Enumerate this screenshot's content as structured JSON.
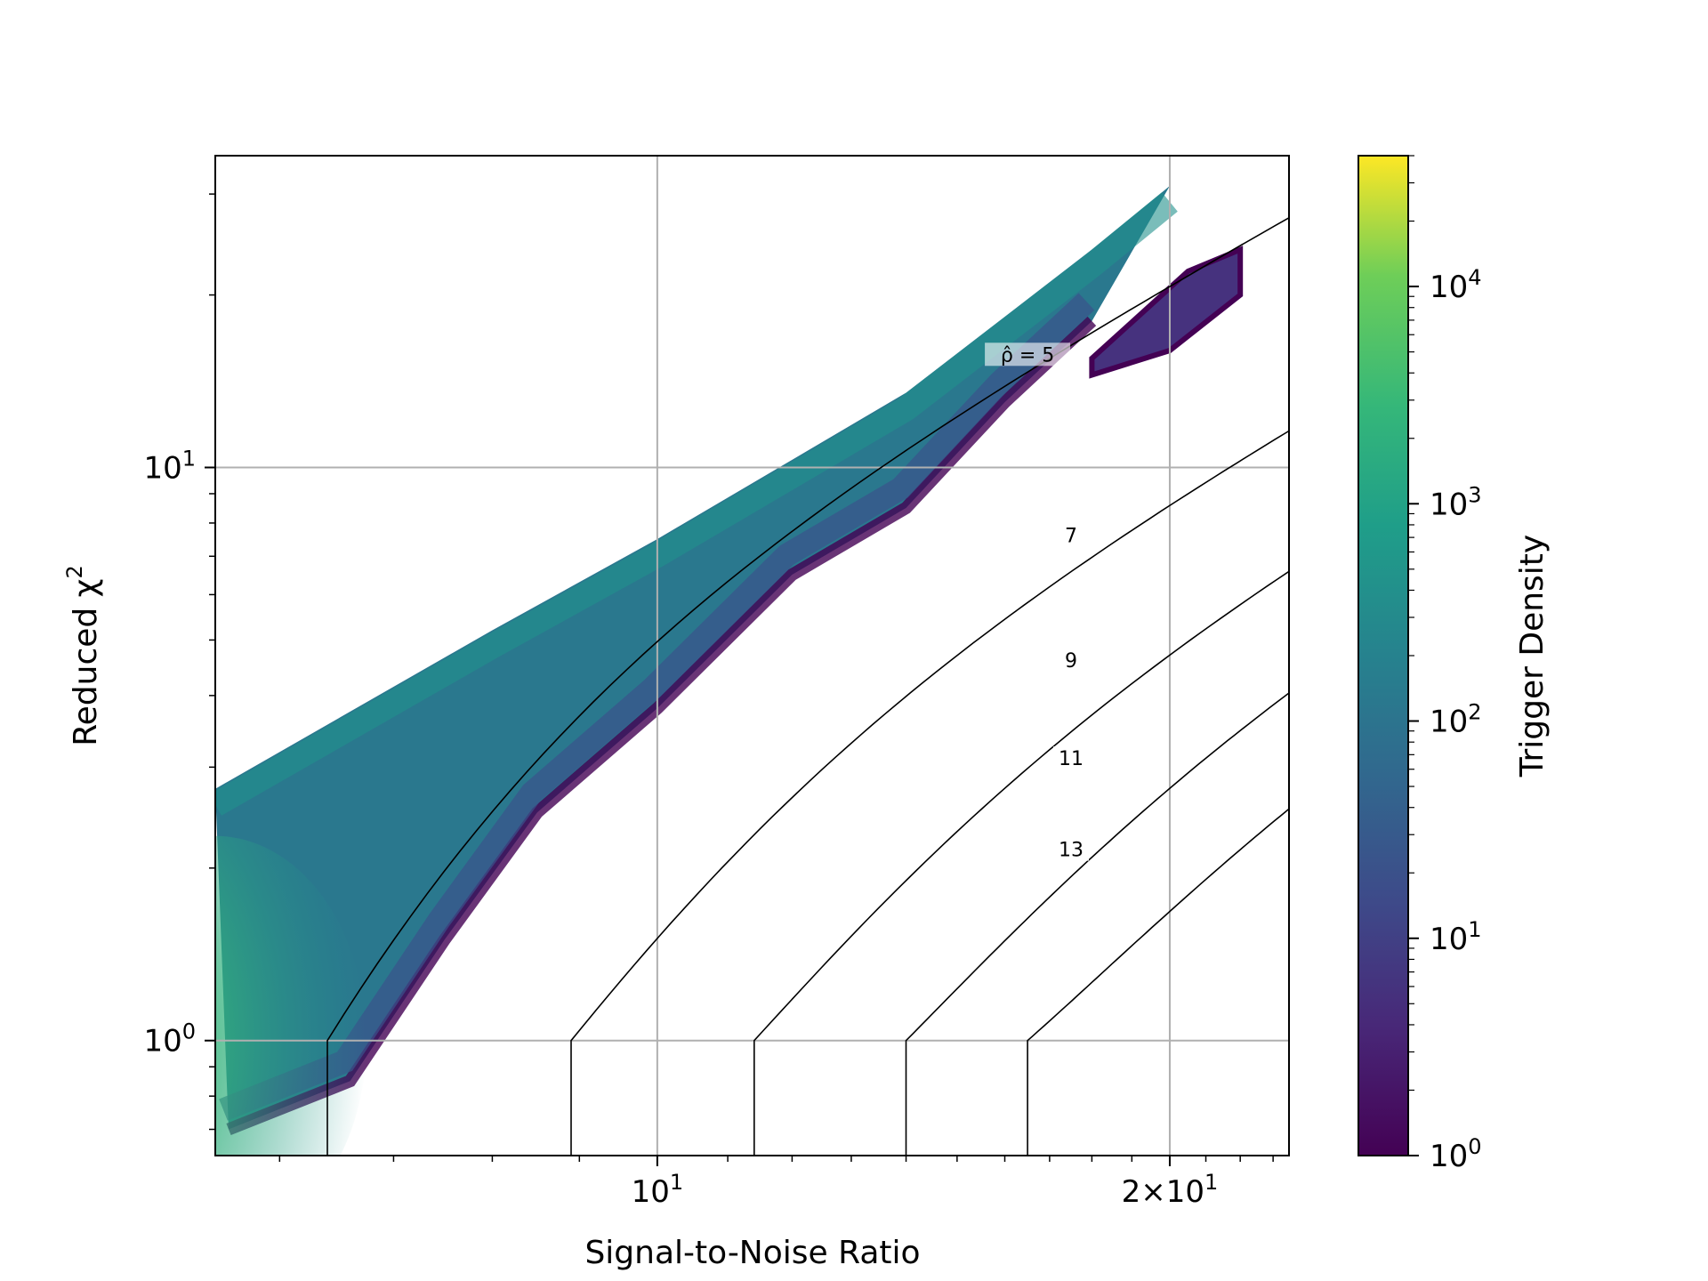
{
  "chart_data": {
    "type": "heatmap",
    "title": "",
    "xlabel": "Signal-to-Noise Ratio",
    "ylabel": "Reduced χ²",
    "xscale": "log",
    "yscale": "log",
    "xlim": [
      5.5,
      23.5
    ],
    "ylim": [
      0.63,
      35
    ],
    "grid": true,
    "x_ticks": [
      {
        "value": 10,
        "base": "10",
        "exp": "1",
        "coef": ""
      },
      {
        "value": 20,
        "base": "10",
        "exp": "1",
        "coef": "2×"
      }
    ],
    "y_ticks": [
      {
        "value": 1,
        "base": "10",
        "exp": "0"
      },
      {
        "value": 10,
        "base": "10",
        "exp": "1"
      }
    ],
    "colorbar": {
      "label": "Trigger Density",
      "scale": "log",
      "range": [
        1,
        40000
      ],
      "ticks": [
        {
          "value": 1,
          "base": "10",
          "exp": "0"
        },
        {
          "value": 10,
          "base": "10",
          "exp": "1"
        },
        {
          "value": 100,
          "base": "10",
          "exp": "2"
        },
        {
          "value": 1000,
          "base": "10",
          "exp": "3"
        },
        {
          "value": 10000,
          "base": "10",
          "exp": "4"
        }
      ],
      "colormap": "viridis"
    },
    "contours": [
      {
        "label": "ρ̂ = 5",
        "rho": 5,
        "label_at": [
          16.5,
          15.7
        ],
        "x_vertical": 6.4
      },
      {
        "label": "7",
        "rho": 7,
        "label_at": [
          17.5,
          7.6
        ],
        "x_vertical": 8.9
      },
      {
        "label": "9",
        "rho": 9,
        "label_at": [
          17.5,
          4.6
        ],
        "x_vertical": 11.4
      },
      {
        "label": "11",
        "rho": 11,
        "label_at": [
          17.5,
          3.1
        ],
        "x_vertical": 14.0
      },
      {
        "label": "13",
        "rho": 13,
        "label_at": [
          17.5,
          2.15
        ],
        "x_vertical": 16.5
      }
    ],
    "density_regions": {
      "upper_edge": [
        [
          5.5,
          2.75
        ],
        [
          8.0,
          5.2
        ],
        [
          10.0,
          7.5
        ],
        [
          14.0,
          13.5
        ],
        [
          18.0,
          24.0
        ],
        [
          20.0,
          31.0
        ]
      ],
      "lower_edge": [
        [
          5.6,
          0.7
        ],
        [
          6.6,
          0.85
        ],
        [
          7.5,
          1.5
        ],
        [
          8.5,
          2.5
        ],
        [
          10.0,
          3.8
        ],
        [
          12.0,
          6.5
        ],
        [
          14.0,
          8.5
        ],
        [
          16.0,
          13.0
        ],
        [
          18.0,
          18.0
        ]
      ],
      "peak": [
        5.5,
        1.0
      ],
      "branch": {
        "upper": [
          [
            18.0,
            15.5
          ],
          [
            20.5,
            22.0
          ],
          [
            22.0,
            24.0
          ]
        ],
        "lower": [
          [
            18.0,
            14.5
          ],
          [
            20.0,
            16.0
          ],
          [
            22.0,
            20.0
          ]
        ]
      }
    },
    "colors": {
      "low": "#440154",
      "mid": "#21918c",
      "high": "#fde725",
      "contour": "#000000",
      "grid": "#b0b0b0"
    }
  }
}
